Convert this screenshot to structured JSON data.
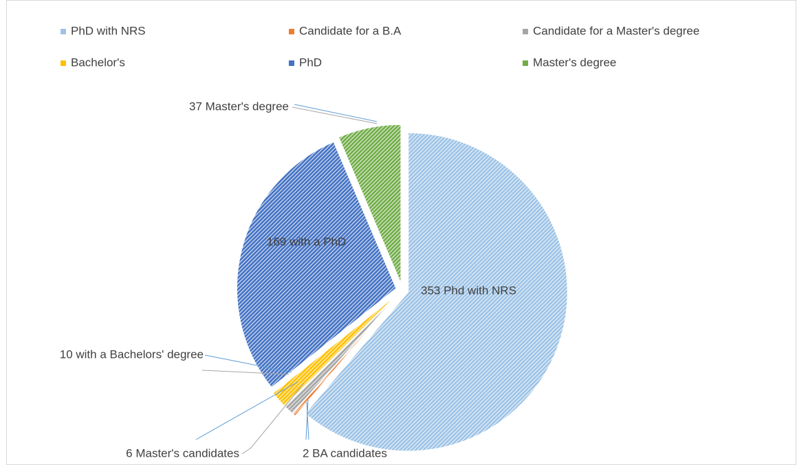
{
  "chart_data": {
    "type": "pie",
    "categories": [
      "PhD with NRS",
      "Candidate for a B.A",
      "Candidate for a Master's degree",
      "Bachelor's",
      "PhD",
      "Master's degree"
    ],
    "values": [
      353,
      2,
      6,
      10,
      169,
      37
    ],
    "value_labels": [
      "353 Phd with NRS",
      "2 BA candidates",
      "6 Master's candidates",
      "10 with a Bachelors' degree",
      "169 with a PhD",
      "37 Master's degree"
    ],
    "colors": [
      "#9dc3e6",
      "#ed7d31",
      "#a5a5a5",
      "#ffc000",
      "#4472c4",
      "#70ad47"
    ],
    "legend": "top"
  }
}
